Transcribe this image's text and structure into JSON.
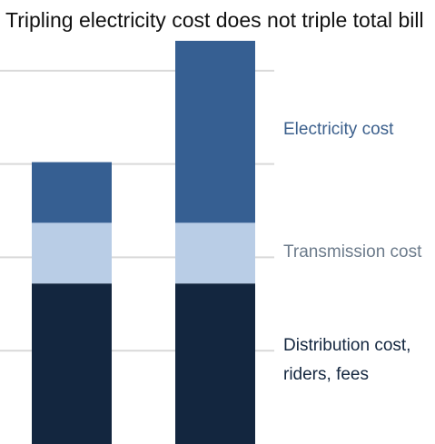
{
  "chart_data": {
    "type": "bar",
    "stacked": true,
    "title": "Tripling electricity cost does not triple total bill",
    "xlabel": "",
    "ylabel": "",
    "categories": [
      "",
      ""
    ],
    "ylim": [
      0,
      4.3
    ],
    "grid": true,
    "legend_position": "right",
    "series": [
      {
        "name": "Distribution cost, riders, fees",
        "values": [
          1.72,
          1.72
        ],
        "color": "#13263f",
        "label_color": "#13263f"
      },
      {
        "name": "Transmission cost",
        "values": [
          0.65,
          0.65
        ],
        "color": "#b9cde6",
        "label_color": "#6c7b8b"
      },
      {
        "name": "Electricity cost",
        "values": [
          0.65,
          1.95
        ],
        "color": "#365f92",
        "label_color": "#3b5f8c"
      }
    ]
  }
}
